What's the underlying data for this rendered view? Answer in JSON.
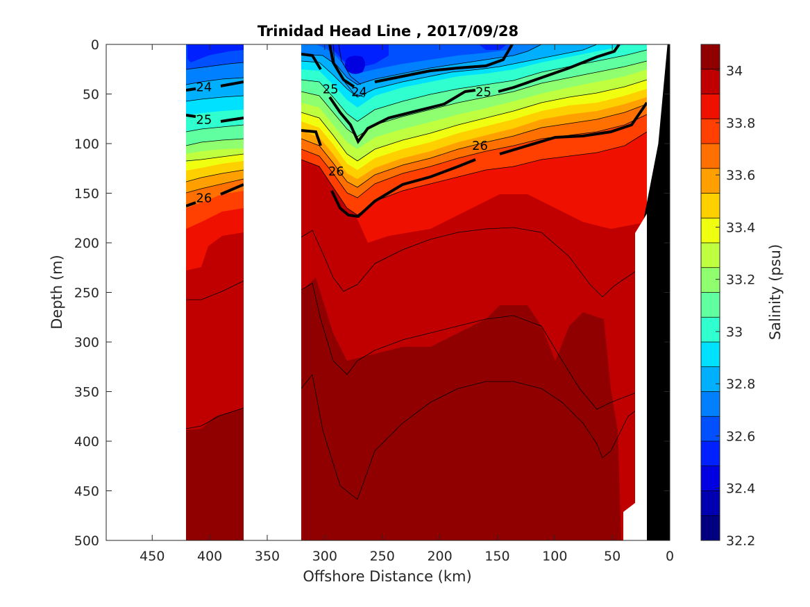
{
  "chart_data": {
    "type": "heatmap",
    "title": "Trinidad Head Line , 2017/09/28",
    "xlabel": "Offshore Distance (km)",
    "ylabel": "Depth (m)",
    "colorbar_label": "Salinity (psu)",
    "xlim": [
      490,
      0
    ],
    "ylim": [
      0,
      500
    ],
    "x_ticks": [
      "450",
      "400",
      "350",
      "300",
      "250",
      "200",
      "150",
      "100",
      "50",
      "0"
    ],
    "x_tick_values": [
      450,
      400,
      350,
      300,
      250,
      200,
      150,
      100,
      50,
      0
    ],
    "y_ticks": [
      "0",
      "50",
      "100",
      "150",
      "200",
      "250",
      "300",
      "350",
      "400",
      "450",
      "500"
    ],
    "y_tick_values": [
      0,
      50,
      100,
      150,
      200,
      250,
      300,
      350,
      400,
      450,
      500
    ],
    "colorbar_ticks": [
      "34",
      "33.8",
      "33.6",
      "33.4",
      "33.2",
      "33",
      "32.8",
      "32.6",
      "32.4",
      "32.2"
    ],
    "colorbar_tick_values": [
      34,
      33.8,
      33.6,
      33.4,
      33.2,
      33,
      32.8,
      32.6,
      32.4,
      32.2
    ],
    "colorbar_range": [
      32.2,
      34.1
    ],
    "colorbar_colors": [
      "#000080",
      "#0000b0",
      "#0000e0",
      "#0020ff",
      "#0050ff",
      "#0080ff",
      "#00b0ff",
      "#00e0ff",
      "#30ffcf",
      "#60ff9f",
      "#90ff6f",
      "#c0ff40",
      "#f0ff10",
      "#ffd000",
      "#ffa000",
      "#ff7000",
      "#ff4000",
      "#f01000",
      "#c00000",
      "#900000"
    ],
    "salinity_colors": {
      "32.5": "#0050ff",
      "32.6": "#0080ff",
      "32.8": "#00b0ff",
      "33.0": "#00e0ff",
      "33.1": "#30ffcf",
      "33.2": "#60ff9f",
      "33.3": "#90ff6f",
      "33.4": "#c0ff40",
      "33.5": "#f0ff10",
      "33.6": "#ffd000",
      "33.7": "#ffa000",
      "33.8": "#ff7000",
      "33.9": "#ff4000",
      "33.95": "#f01000",
      "34.0": "#c00000",
      "34.1": "#900000"
    },
    "density_contour_labels": [
      {
        "text": "24",
        "x": 405,
        "y": 43
      },
      {
        "text": "25",
        "x": 405,
        "y": 76
      },
      {
        "text": "26",
        "x": 405,
        "y": 155
      },
      {
        "text": "25",
        "x": 295,
        "y": 45
      },
      {
        "text": "24",
        "x": 270,
        "y": 48
      },
      {
        "text": "26",
        "x": 290,
        "y": 128
      },
      {
        "text": "25",
        "x": 162,
        "y": 48
      },
      {
        "text": "26",
        "x": 165,
        "y": 102
      }
    ],
    "sections": [
      {
        "name": "west",
        "x_from": 420,
        "x_to": 370
      },
      {
        "name": "east",
        "x_from": 320,
        "x_to": 20
      }
    ],
    "bathymetry": {
      "color": "#000000",
      "points": [
        [
          0,
          0
        ],
        [
          0,
          500
        ],
        [
          25,
          500
        ],
        [
          28,
          330
        ],
        [
          30,
          220
        ],
        [
          10,
          100
        ],
        [
          2,
          0
        ]
      ]
    }
  }
}
